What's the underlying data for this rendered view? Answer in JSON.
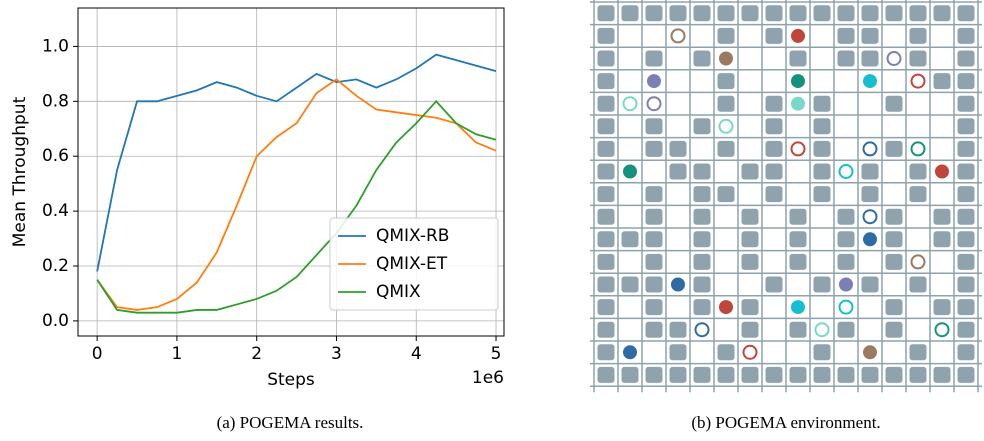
{
  "chart_data": {
    "type": "line",
    "caption": "(a) POGEMA results.",
    "xlabel": "Steps",
    "ylabel": "Mean Throughput",
    "x_offset_label": "1e6",
    "x": [
      0,
      0.25,
      0.5,
      0.75,
      1,
      1.25,
      1.5,
      1.75,
      2,
      2.25,
      2.5,
      2.75,
      3,
      3.25,
      3.5,
      3.75,
      4,
      4.25,
      4.5,
      4.75,
      5
    ],
    "series": [
      {
        "name": "QMIX-RB",
        "color": "#1f77b4",
        "values": [
          0.18,
          0.55,
          0.8,
          0.8,
          0.82,
          0.84,
          0.87,
          0.85,
          0.82,
          0.8,
          0.85,
          0.9,
          0.87,
          0.88,
          0.85,
          0.88,
          0.92,
          0.97,
          0.95,
          0.93,
          0.91
        ]
      },
      {
        "name": "QMIX-ET",
        "color": "#ff7f0e",
        "values": [
          0.15,
          0.05,
          0.04,
          0.05,
          0.08,
          0.14,
          0.25,
          0.42,
          0.6,
          0.67,
          0.72,
          0.83,
          0.88,
          0.82,
          0.77,
          0.76,
          0.75,
          0.74,
          0.72,
          0.65,
          0.62
        ]
      },
      {
        "name": "QMIX",
        "color": "#2ca02c",
        "values": [
          0.15,
          0.04,
          0.03,
          0.03,
          0.03,
          0.04,
          0.04,
          0.06,
          0.08,
          0.11,
          0.16,
          0.24,
          0.32,
          0.42,
          0.55,
          0.65,
          0.72,
          0.8,
          0.72,
          0.68,
          0.66
        ]
      }
    ],
    "xlim": [
      -0.24,
      5.1
    ],
    "xticks": [
      0,
      1,
      2,
      3,
      4,
      5
    ],
    "ylim": [
      -0.055,
      1.14
    ],
    "yticks": [
      {
        "value": 0,
        "label": "0.0"
      },
      {
        "value": 0.2,
        "label": "0.2"
      },
      {
        "value": 0.4,
        "label": "0.4"
      },
      {
        "value": 0.6,
        "label": "0.6"
      },
      {
        "value": 0.8,
        "label": "0.8"
      },
      {
        "value": 1,
        "label": "1.0"
      }
    ],
    "grid": true,
    "legend": "lower right"
  },
  "environment": {
    "caption": "(b) POGEMA environment."
  }
}
